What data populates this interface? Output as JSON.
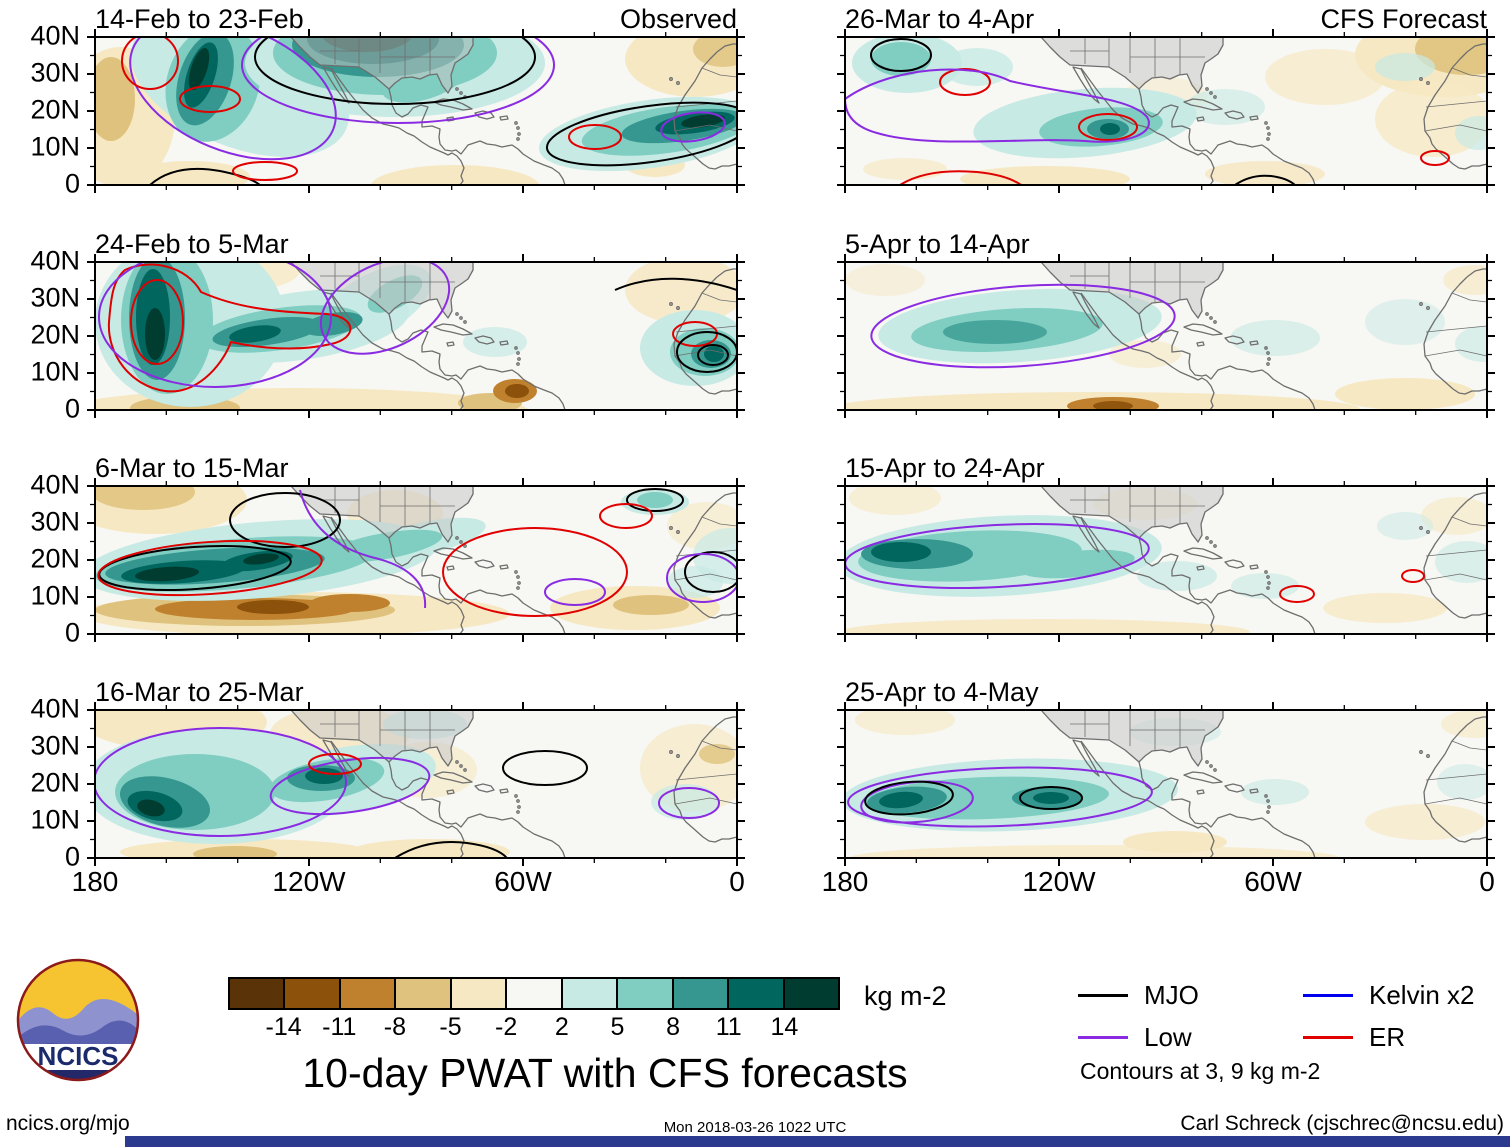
{
  "chart_data": {
    "type": "heatmap",
    "subtype": "filled-contour anomaly maps",
    "title": "10-day PWAT with CFS forecasts",
    "column_headers": {
      "left": "Observed",
      "right": "CFS Forecast"
    },
    "panels": {
      "observed": [
        "14-Feb to 23-Feb",
        "24-Feb to 5-Mar",
        "6-Mar to 15-Mar",
        "16-Mar to 25-Mar"
      ],
      "forecast": [
        "26-Mar to 4-Apr",
        "5-Apr to 14-Apr",
        "15-Apr to 24-Apr",
        "25-Apr to 4-May"
      ]
    },
    "axes": {
      "y_ticks": [
        "40N",
        "30N",
        "20N",
        "10N",
        "0"
      ],
      "x_ticks": [
        "180",
        "120W",
        "60W",
        "0"
      ],
      "x_range_deg_lon": [
        180,
        0
      ],
      "y_range_deg_lat": [
        0,
        40
      ]
    },
    "colorbar": {
      "ticks": [
        "-14",
        "-11",
        "-8",
        "-5",
        "-2",
        "2",
        "5",
        "8",
        "11",
        "14"
      ],
      "colors": [
        "#5a3408",
        "#8c510a",
        "#bf812d",
        "#dfc27d",
        "#f6e8c3",
        "#f7f7f3",
        "#c7eae5",
        "#80cdc1",
        "#35978f",
        "#01665e",
        "#003c30"
      ],
      "units_label": "kg m-2"
    },
    "legend": [
      {
        "label": "MJO",
        "color": "#000000"
      },
      {
        "label": "Kelvin x2",
        "color": "#0000ee"
      },
      {
        "label": "Low",
        "color": "#8a2be2"
      },
      {
        "label": "ER",
        "color": "#e00000"
      }
    ],
    "contour_note": "Contours at 3, 9 kg m-2",
    "contour_levels_kg_m2": [
      3,
      9
    ]
  },
  "footer": {
    "site": "ncics.org/mjo",
    "timestamp": "Mon 2018-03-26 1022 UTC",
    "credit": "Carl Schreck (cjschrec@ncsu.edu)"
  },
  "logo_text": "NCICS"
}
